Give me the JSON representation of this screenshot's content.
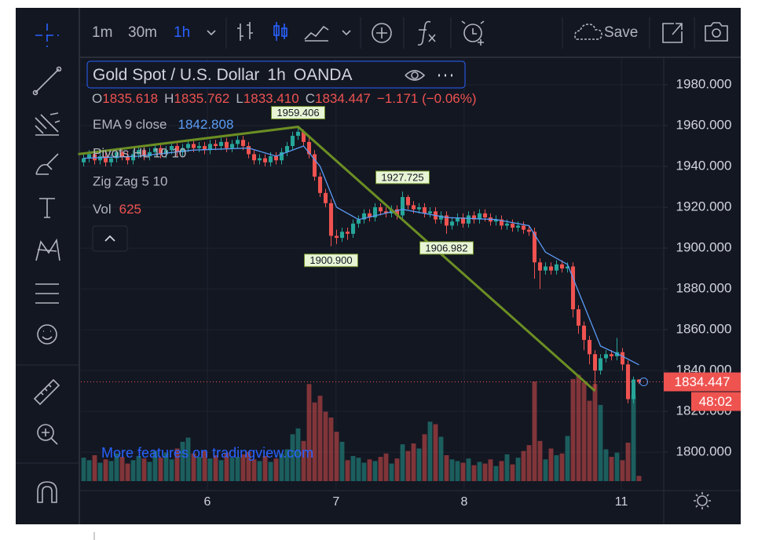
{
  "toolbar": {
    "intervals": [
      "1m",
      "30m",
      "1h"
    ],
    "save": "Save"
  },
  "header": {
    "symbol": "Gold Spot / U.S. Dollar",
    "interval": "1h",
    "exchange": "OANDA",
    "change": "−1.171 (−0.06%)",
    "ohlc_letters": [
      "O",
      "H",
      "L",
      "C"
    ]
  },
  "indicators": {
    "ema": "EMA 9 close",
    "pivots": "Pivots HL 10 10",
    "zigzag": "Zig Zag 5 10",
    "vol": "Vol"
  },
  "promo": "More features on tradingview.com",
  "countdown": "48:02",
  "chart_data": {
    "type": "candlestick",
    "ylim": [
      1781.2,
      1992.7
    ],
    "yticks": [
      {
        "value": 1800,
        "label": "1800.000"
      },
      {
        "value": 1820,
        "label": "1820.000"
      },
      {
        "value": 1840,
        "label": "1840.000"
      },
      {
        "value": 1860,
        "label": "1860.000"
      },
      {
        "value": 1880,
        "label": "1880.000"
      },
      {
        "value": 1900,
        "label": "1900.000"
      },
      {
        "value": 1920,
        "label": "1920.000"
      },
      {
        "value": 1940,
        "label": "1940.000"
      },
      {
        "value": 1960,
        "label": "1960.000"
      },
      {
        "value": 1980,
        "label": "1980.000"
      }
    ],
    "xlim": [
      0,
      106
    ],
    "xticks": [
      {
        "value": 23,
        "label": "6"
      },
      {
        "value": 46.4,
        "label": "7"
      },
      {
        "value": 69.7,
        "label": "8"
      },
      {
        "value": 98.3,
        "label": "11"
      }
    ],
    "grid": true,
    "up_color": "#26a69a",
    "down_color": "#ef5350",
    "ohlc": [
      [
        1942,
        1946,
        1940,
        1944
      ],
      [
        1944,
        1948,
        1942,
        1946
      ],
      [
        1946,
        1948,
        1941,
        1943
      ],
      [
        1943,
        1947,
        1941,
        1945
      ],
      [
        1945,
        1947,
        1940,
        1942
      ],
      [
        1942,
        1946,
        1940,
        1944
      ],
      [
        1944,
        1949,
        1942,
        1947
      ],
      [
        1947,
        1949,
        1943,
        1945
      ],
      [
        1945,
        1947,
        1941,
        1943
      ],
      [
        1943,
        1948,
        1941,
        1946
      ],
      [
        1946,
        1950,
        1944,
        1948
      ],
      [
        1948,
        1950,
        1943,
        1945
      ],
      [
        1945,
        1949,
        1943,
        1947
      ],
      [
        1947,
        1951,
        1945,
        1949
      ],
      [
        1949,
        1951,
        1944,
        1946
      ],
      [
        1946,
        1950,
        1944,
        1948
      ],
      [
        1948,
        1952,
        1946,
        1950
      ],
      [
        1950,
        1952,
        1945,
        1947
      ],
      [
        1947,
        1951,
        1945,
        1949
      ],
      [
        1949,
        1953,
        1947,
        1951
      ],
      [
        1951,
        1953,
        1947,
        1949
      ],
      [
        1949,
        1952,
        1947,
        1950
      ],
      [
        1950,
        1952,
        1946,
        1948
      ],
      [
        1948,
        1953,
        1946,
        1951
      ],
      [
        1951,
        1953,
        1948,
        1950
      ],
      [
        1950,
        1954,
        1948,
        1952
      ],
      [
        1952,
        1954,
        1947,
        1949
      ],
      [
        1949,
        1953,
        1947,
        1951
      ],
      [
        1951,
        1955,
        1949,
        1953
      ],
      [
        1953,
        1955,
        1948,
        1950
      ],
      [
        1950,
        1952,
        1944,
        1946
      ],
      [
        1946,
        1948,
        1941,
        1943
      ],
      [
        1943,
        1946,
        1941,
        1944
      ],
      [
        1944,
        1946,
        1940,
        1942
      ],
      [
        1942,
        1947,
        1940,
        1945
      ],
      [
        1945,
        1947,
        1941,
        1943
      ],
      [
        1943,
        1949,
        1941,
        1947
      ],
      [
        1947,
        1952,
        1945,
        1950
      ],
      [
        1950,
        1957,
        1948,
        1955
      ],
      [
        1955,
        1959.406,
        1953,
        1957
      ],
      [
        1957,
        1958,
        1950,
        1952
      ],
      [
        1952,
        1954,
        1944,
        1946
      ],
      [
        1946,
        1948,
        1933,
        1935
      ],
      [
        1935,
        1937,
        1925,
        1927
      ],
      [
        1927,
        1929,
        1920,
        1922
      ],
      [
        1922,
        1924,
        1900.9,
        1906
      ],
      [
        1906,
        1909,
        1902,
        1905
      ],
      [
        1905,
        1910,
        1903,
        1908
      ],
      [
        1908,
        1910,
        1904,
        1907
      ],
      [
        1907,
        1914,
        1905,
        1912
      ],
      [
        1912,
        1916,
        1910,
        1914
      ],
      [
        1914,
        1919,
        1912,
        1917
      ],
      [
        1917,
        1919,
        1913,
        1915
      ],
      [
        1915,
        1922,
        1913,
        1920
      ],
      [
        1920,
        1922,
        1916,
        1918
      ],
      [
        1918,
        1920,
        1915,
        1917
      ],
      [
        1917,
        1921,
        1915,
        1919
      ],
      [
        1919,
        1921,
        1914,
        1916
      ],
      [
        1916,
        1927.725,
        1914,
        1925
      ],
      [
        1925,
        1926,
        1919,
        1921
      ],
      [
        1921,
        1923,
        1917,
        1919
      ],
      [
        1919,
        1922,
        1917,
        1920
      ],
      [
        1920,
        1922,
        1915,
        1917
      ],
      [
        1917,
        1920,
        1915,
        1918
      ],
      [
        1918,
        1920,
        1912,
        1914
      ],
      [
        1914,
        1918,
        1912,
        1916
      ],
      [
        1916,
        1918,
        1906.982,
        1911
      ],
      [
        1911,
        1915,
        1909,
        1913
      ],
      [
        1913,
        1917,
        1911,
        1915
      ],
      [
        1915,
        1917,
        1910,
        1912
      ],
      [
        1912,
        1918,
        1910,
        1916
      ],
      [
        1916,
        1918,
        1912,
        1914
      ],
      [
        1914,
        1919,
        1912,
        1917
      ],
      [
        1917,
        1919,
        1913,
        1915
      ],
      [
        1915,
        1917,
        1911,
        1913
      ],
      [
        1913,
        1916,
        1911,
        1914
      ],
      [
        1914,
        1916,
        1909,
        1911
      ],
      [
        1911,
        1914,
        1909,
        1912
      ],
      [
        1912,
        1914,
        1908,
        1910
      ],
      [
        1910,
        1913,
        1908,
        1911
      ],
      [
        1911,
        1913,
        1907,
        1909
      ],
      [
        1909,
        1911,
        1906,
        1908
      ],
      [
        1908,
        1910,
        1885,
        1893
      ],
      [
        1893,
        1895,
        1880,
        1889
      ],
      [
        1889,
        1893,
        1887,
        1891
      ],
      [
        1891,
        1893,
        1887,
        1889
      ],
      [
        1889,
        1894,
        1887,
        1892
      ],
      [
        1892,
        1894,
        1888,
        1890
      ],
      [
        1890,
        1893,
        1888,
        1891
      ],
      [
        1891,
        1893,
        1866,
        1870
      ],
      [
        1870,
        1872,
        1858,
        1862
      ],
      [
        1862,
        1864,
        1850,
        1855
      ],
      [
        1855,
        1857,
        1843,
        1848
      ],
      [
        1848,
        1850,
        1830,
        1840
      ],
      [
        1840,
        1848,
        1838,
        1846
      ],
      [
        1846,
        1850,
        1844,
        1848
      ],
      [
        1848,
        1850,
        1845,
        1847
      ],
      [
        1847,
        1856,
        1845,
        1849
      ],
      [
        1849,
        1851,
        1840,
        1843
      ],
      [
        1843,
        1845,
        1824,
        1826
      ],
      [
        1826,
        1837,
        1824,
        1835.618
      ],
      [
        1835.618,
        1835.762,
        1833.41,
        1834.447
      ]
    ],
    "last_labels": [
      "1835.618",
      "1835.762",
      "1833.410",
      "1834.447"
    ],
    "vlim": [
      0,
      15000
    ],
    "volume": [
      2800,
      2500,
      3100,
      2200,
      2600,
      2400,
      3300,
      2900,
      2100,
      2500,
      3000,
      2700,
      2300,
      3600,
      2800,
      3400,
      2600,
      3900,
      4700,
      5200,
      3300,
      2900,
      3600,
      2700,
      3100,
      2500,
      3400,
      2800,
      2900,
      3200,
      3500,
      2600,
      2400,
      3000,
      2300,
      2700,
      3300,
      3800,
      5600,
      6300,
      4800,
      11600,
      9400,
      10200,
      8300,
      7600,
      5900,
      4700,
      2500,
      3000,
      2800,
      2200,
      2600,
      2400,
      2900,
      3300,
      2100,
      2700,
      4400,
      3600,
      4500,
      3900,
      5600,
      7100,
      6800,
      5300,
      3100,
      2600,
      2400,
      2200,
      2700,
      1900,
      2300,
      2100,
      2600,
      1800,
      2400,
      3200,
      2000,
      2800,
      3600,
      4300,
      11900,
      4800,
      2600,
      3900,
      3100,
      3300,
      5400,
      12200,
      12700,
      11800,
      9600,
      11600,
      9100,
      3800,
      2900,
      3400,
      2500,
      4600,
      10300,
      625
    ],
    "ema": {
      "name": "EMA 9 close",
      "color": "#5b9cf6",
      "x": [
        0,
        10,
        20,
        30,
        35,
        40,
        43,
        46,
        50,
        58,
        66,
        75,
        81,
        84,
        88,
        91,
        94,
        98,
        101
      ],
      "values": [
        1944,
        1945,
        1948,
        1949,
        1945,
        1950,
        1940,
        1920,
        1914,
        1919,
        1915,
        1914,
        1911,
        1898,
        1892,
        1872,
        1852,
        1847,
        1842.808
      ]
    },
    "zigzag": {
      "color": "#6b8e23",
      "x": [
        -1,
        39,
        93
      ],
      "values": [
        1946,
        1959.406,
        1830
      ]
    },
    "pivots": {
      "x": [
        39,
        58,
        45,
        66
      ],
      "values": [
        1959.406,
        1927.725,
        1900.9,
        1906.982
      ],
      "value_labels": [
        "1959.406",
        "1927.725",
        "1900.900",
        "1906.982"
      ],
      "position": [
        "above",
        "above",
        "below",
        "below"
      ]
    }
  }
}
